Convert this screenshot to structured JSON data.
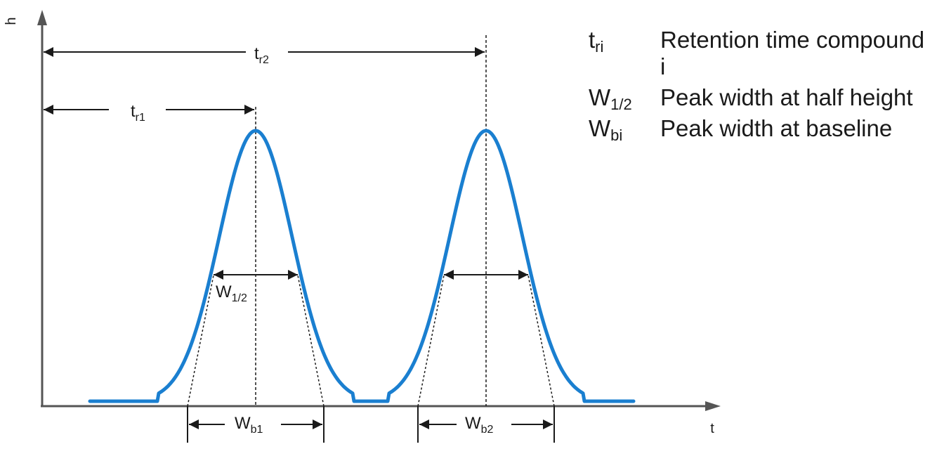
{
  "diagram": {
    "axes": {
      "y_label": "h",
      "x_label": "t"
    },
    "annotations": {
      "tr1": {
        "main": "t",
        "sub": "r1"
      },
      "tr2": {
        "main": "t",
        "sub": "r2"
      },
      "w_half": {
        "main": "W",
        "sub": "1/2"
      },
      "wb1": {
        "main": "W",
        "sub": "b1"
      },
      "wb2": {
        "main": "W",
        "sub": "b2"
      }
    },
    "curve_color": "#1a7fd0"
  },
  "legend": [
    {
      "symbol": "t",
      "sub": "ri",
      "text": "Retention time compound i"
    },
    {
      "symbol": "W",
      "sub": "1/2",
      "text": "Peak width at half height"
    },
    {
      "symbol": "W",
      "sub": "bi",
      "text": "Peak width at baseline"
    }
  ]
}
